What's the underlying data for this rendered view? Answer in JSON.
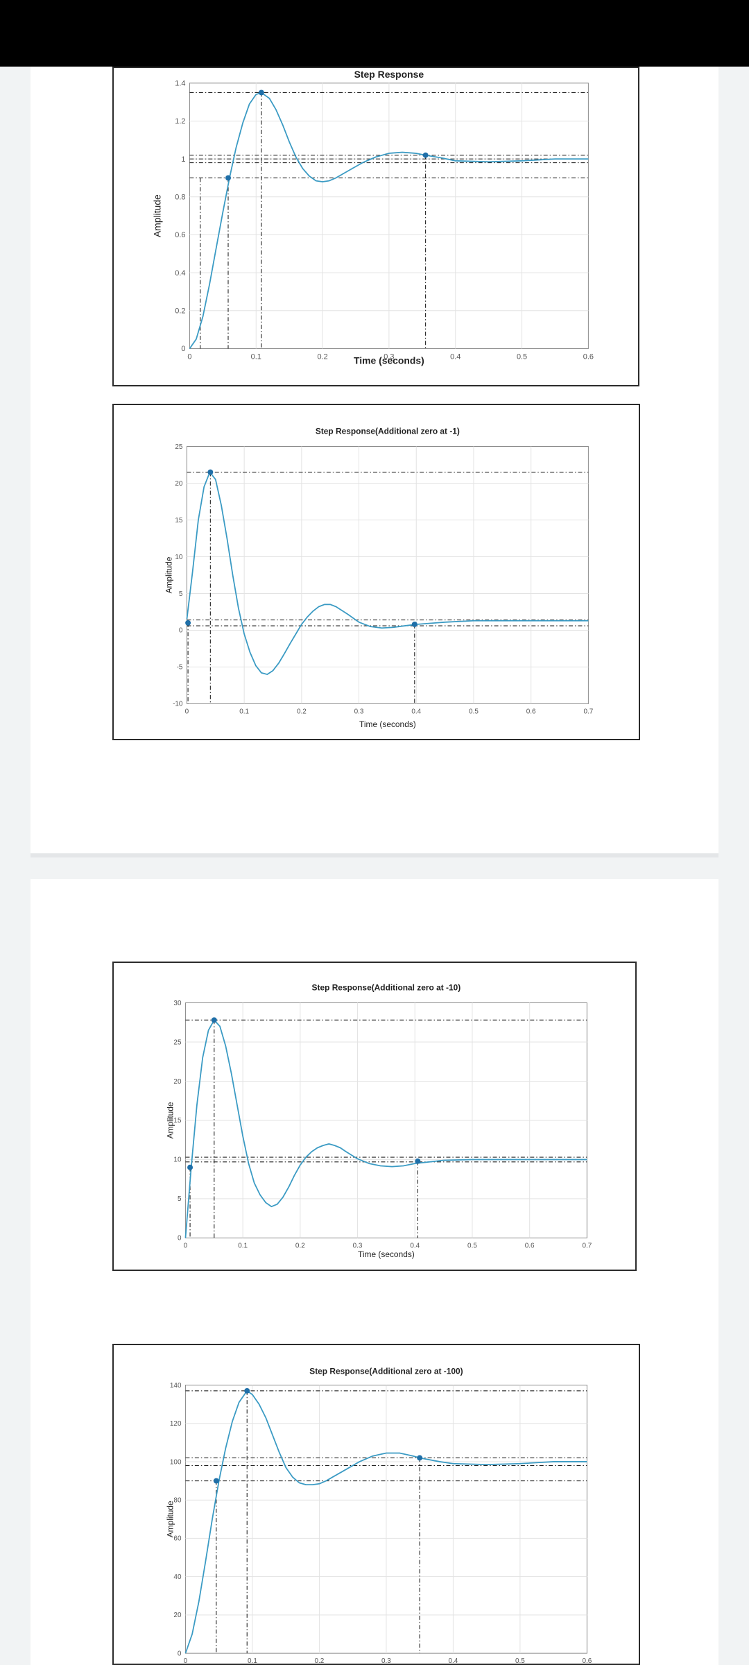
{
  "colors": {
    "line": "#3b9bc4",
    "marker": "#1f6fa8",
    "grid": "#e3e3e3",
    "axis": "#8a8a8a",
    "guide": "#222222",
    "text": "#222222"
  },
  "chart_data": [
    {
      "type": "line",
      "title": "Step Response",
      "xlabel": "Time (seconds)",
      "ylabel": "Amplitude",
      "xlim": [
        0,
        0.6
      ],
      "ylim": [
        0,
        1.4
      ],
      "xticks": [
        "0",
        "0.1",
        "0.2",
        "0.3",
        "0.4",
        "0.5",
        "0.6"
      ],
      "yticks": [
        "0",
        "0.2",
        "0.4",
        "0.6",
        "0.8",
        "1",
        "1.2",
        "1.4"
      ],
      "grid": true,
      "series": [
        {
          "x": [
            0,
            0.01,
            0.02,
            0.03,
            0.04,
            0.05,
            0.06,
            0.07,
            0.08,
            0.09,
            0.1,
            0.108,
            0.12,
            0.13,
            0.14,
            0.15,
            0.16,
            0.17,
            0.18,
            0.19,
            0.2,
            0.21,
            0.22,
            0.24,
            0.26,
            0.28,
            0.3,
            0.32,
            0.34,
            0.355,
            0.38,
            0.4,
            0.45,
            0.5,
            0.55,
            0.6
          ],
          "y": [
            0,
            0.05,
            0.17,
            0.34,
            0.53,
            0.72,
            0.9,
            1.06,
            1.19,
            1.29,
            1.34,
            1.35,
            1.32,
            1.26,
            1.18,
            1.09,
            1.01,
            0.95,
            0.91,
            0.885,
            0.88,
            0.885,
            0.9,
            0.94,
            0.98,
            1.01,
            1.03,
            1.035,
            1.03,
            1.02,
            1.005,
            0.99,
            0.985,
            0.99,
            1.0,
            1.0
          ]
        }
      ],
      "markers": [
        {
          "x": 0.058,
          "y": 0.9
        },
        {
          "x": 0.108,
          "y": 1.35
        },
        {
          "x": 0.355,
          "y": 1.02
        }
      ],
      "hlines": [
        1.35,
        1.02,
        1.0,
        0.98,
        0.9
      ],
      "vlines": [
        0.016,
        0.058,
        0.108,
        0.355
      ]
    },
    {
      "type": "line",
      "title": "Step Response(Additional zero at -1)",
      "xlabel": "Time (seconds)",
      "ylabel": "Amplitude",
      "xlim": [
        0,
        0.7
      ],
      "ylim": [
        -10,
        25
      ],
      "xticks": [
        "0",
        "0.1",
        "0.2",
        "0.3",
        "0.4",
        "0.5",
        "0.6",
        "0.7"
      ],
      "yticks": [
        "-10",
        "-5",
        "0",
        "5",
        "10",
        "15",
        "20",
        "25"
      ],
      "grid": true,
      "series": [
        {
          "x": [
            0,
            0.01,
            0.02,
            0.03,
            0.04,
            0.05,
            0.06,
            0.07,
            0.08,
            0.09,
            0.1,
            0.11,
            0.12,
            0.13,
            0.14,
            0.15,
            0.16,
            0.17,
            0.18,
            0.19,
            0.2,
            0.21,
            0.22,
            0.23,
            0.24,
            0.25,
            0.26,
            0.28,
            0.3,
            0.32,
            0.34,
            0.36,
            0.38,
            0.4,
            0.45,
            0.5,
            0.55,
            0.6,
            0.65,
            0.7
          ],
          "y": [
            1.5,
            8,
            15,
            19.5,
            21.5,
            20.5,
            17,
            12.5,
            7.5,
            3,
            -0.5,
            -3,
            -4.8,
            -5.8,
            -6,
            -5.5,
            -4.5,
            -3.2,
            -1.8,
            -0.5,
            0.8,
            1.8,
            2.6,
            3.2,
            3.5,
            3.5,
            3.2,
            2.2,
            1.1,
            0.5,
            0.3,
            0.4,
            0.6,
            0.8,
            1.1,
            1.3,
            1.3,
            1.3,
            1.3,
            1.3
          ]
        }
      ],
      "markers": [
        {
          "x": 0.002,
          "y": 1.0
        },
        {
          "x": 0.041,
          "y": 21.5
        },
        {
          "x": 0.397,
          "y": 0.8
        }
      ],
      "hlines": [
        21.5,
        1.4,
        0.6
      ],
      "vlines": [
        0.002,
        0.041,
        0.397
      ]
    },
    {
      "type": "line",
      "title": "Step Response(Additional zero at -10)",
      "xlabel": "Time (seconds)",
      "ylabel": "Amplitude",
      "xlim": [
        0,
        0.7
      ],
      "ylim": [
        0,
        30
      ],
      "xticks": [
        "0",
        "0.1",
        "0.2",
        "0.3",
        "0.4",
        "0.5",
        "0.6",
        "0.7"
      ],
      "yticks": [
        "0",
        "5",
        "10",
        "15",
        "20",
        "25",
        "30"
      ],
      "grid": true,
      "series": [
        {
          "x": [
            0,
            0.01,
            0.02,
            0.03,
            0.04,
            0.05,
            0.06,
            0.07,
            0.08,
            0.09,
            0.1,
            0.11,
            0.12,
            0.13,
            0.14,
            0.15,
            0.16,
            0.17,
            0.18,
            0.19,
            0.2,
            0.21,
            0.22,
            0.23,
            0.24,
            0.25,
            0.26,
            0.27,
            0.28,
            0.3,
            0.32,
            0.34,
            0.36,
            0.38,
            0.4,
            0.45,
            0.5,
            0.55,
            0.6,
            0.65,
            0.7
          ],
          "y": [
            0,
            9,
            17,
            23,
            26.5,
            27.8,
            27,
            24.5,
            21,
            17,
            13,
            9.5,
            7,
            5.5,
            4.5,
            4,
            4.3,
            5.2,
            6.5,
            8,
            9.3,
            10.3,
            11,
            11.5,
            11.8,
            12,
            11.8,
            11.5,
            11,
            10.1,
            9.5,
            9.2,
            9.1,
            9.2,
            9.5,
            9.9,
            10,
            10,
            10,
            10,
            10
          ]
        }
      ],
      "markers": [
        {
          "x": 0.008,
          "y": 9.0
        },
        {
          "x": 0.05,
          "y": 27.8
        },
        {
          "x": 0.405,
          "y": 9.8
        }
      ],
      "hlines": [
        27.8,
        10.3,
        9.7
      ],
      "vlines": [
        0.008,
        0.05,
        0.405
      ]
    },
    {
      "type": "line",
      "title": "Step Response(Additional zero at -100)",
      "xlabel": "",
      "ylabel": "Amplitude",
      "xlim": [
        0,
        0.6
      ],
      "ylim": [
        0,
        140
      ],
      "xticks": [
        "0",
        "0.1",
        "0.2",
        "0.3",
        "0.4",
        "0.5",
        "0.6"
      ],
      "yticks": [
        "0",
        "20",
        "40",
        "60",
        "80",
        "100",
        "120",
        "140"
      ],
      "grid": true,
      "series": [
        {
          "x": [
            0,
            0.01,
            0.02,
            0.03,
            0.04,
            0.05,
            0.06,
            0.07,
            0.08,
            0.09,
            0.092,
            0.1,
            0.11,
            0.12,
            0.13,
            0.14,
            0.15,
            0.16,
            0.17,
            0.18,
            0.19,
            0.2,
            0.21,
            0.22,
            0.24,
            0.26,
            0.28,
            0.3,
            0.32,
            0.34,
            0.35,
            0.38,
            0.4,
            0.45,
            0.5,
            0.55,
            0.6
          ],
          "y": [
            0,
            10,
            27,
            48,
            70,
            90,
            107,
            121,
            131,
            136,
            137,
            135,
            130,
            123,
            114,
            105,
            97,
            92,
            89,
            88,
            88,
            88.5,
            90,
            92,
            96,
            100,
            103,
            104.5,
            104.5,
            103,
            102,
            100,
            99,
            98.5,
            99,
            100,
            100
          ]
        }
      ],
      "markers": [
        {
          "x": 0.046,
          "y": 90
        },
        {
          "x": 0.092,
          "y": 137
        },
        {
          "x": 0.35,
          "y": 102
        }
      ],
      "hlines": [
        137,
        102,
        98,
        90
      ],
      "vlines": [
        0.046,
        0.092,
        0.35
      ]
    }
  ]
}
